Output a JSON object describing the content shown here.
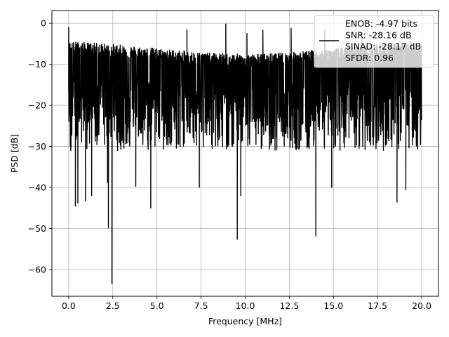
{
  "chart_data": {
    "type": "line",
    "xlabel": "Frequency [MHz]",
    "ylabel": "PSD [dB]",
    "xlim": [
      -0.95,
      20.95
    ],
    "ylim": [
      -66.5,
      3.1
    ],
    "xticks": [
      0.0,
      2.5,
      5.0,
      7.5,
      10.0,
      12.5,
      15.0,
      17.5,
      20.0
    ],
    "xtick_labels": [
      "0.0",
      "2.5",
      "5.0",
      "7.5",
      "10.0",
      "12.5",
      "15.0",
      "17.5",
      "20.0"
    ],
    "yticks": [
      0,
      -10,
      -20,
      -30,
      -40,
      -50,
      -60
    ],
    "ytick_labels": [
      "0",
      "−10",
      "−20",
      "−30",
      "−40",
      "−50",
      "−60"
    ],
    "grid": true,
    "legend_placement": "upper-right",
    "series": [
      {
        "name": "ENOB: -4.97 bits\nSNR: -28.16 dB\nSINAD: -28.17 dB\nSFDR: 0.96",
        "color": "#000000",
        "description_of_shape": "dense noise floor spanning roughly -30 to -5 dB across 0-20 MHz",
        "x_range": [
          0,
          20
        ],
        "noise_floor_band": [
          -30,
          -5
        ],
        "peaks": [
          {
            "x": 0.0,
            "y": -1.0
          },
          {
            "x": 6.7,
            "y": -1.6
          },
          {
            "x": 8.9,
            "y": -0.2
          },
          {
            "x": 10.1,
            "y": -2.5
          },
          {
            "x": 11.0,
            "y": -1.7
          },
          {
            "x": 12.6,
            "y": -1.2
          },
          {
            "x": 14.5,
            "y": -1.6
          },
          {
            "x": 16.6,
            "y": -2.6
          }
        ],
        "dips": [
          {
            "x": 0.12,
            "y": -31.0
          },
          {
            "x": 0.38,
            "y": -44.5
          },
          {
            "x": 0.52,
            "y": -43.8
          },
          {
            "x": 0.95,
            "y": -43.3
          },
          {
            "x": 1.3,
            "y": -42.0
          },
          {
            "x": 2.2,
            "y": -38.8
          },
          {
            "x": 2.25,
            "y": -49.8
          },
          {
            "x": 2.45,
            "y": -63.4
          },
          {
            "x": 3.8,
            "y": -39.7
          },
          {
            "x": 4.65,
            "y": -45.0
          },
          {
            "x": 7.4,
            "y": -40.0
          },
          {
            "x": 9.55,
            "y": -52.6
          },
          {
            "x": 9.75,
            "y": -42.0
          },
          {
            "x": 14.0,
            "y": -51.8
          },
          {
            "x": 14.9,
            "y": -40.0
          },
          {
            "x": 18.6,
            "y": -43.6
          },
          {
            "x": 19.1,
            "y": -40.5
          }
        ]
      }
    ]
  }
}
